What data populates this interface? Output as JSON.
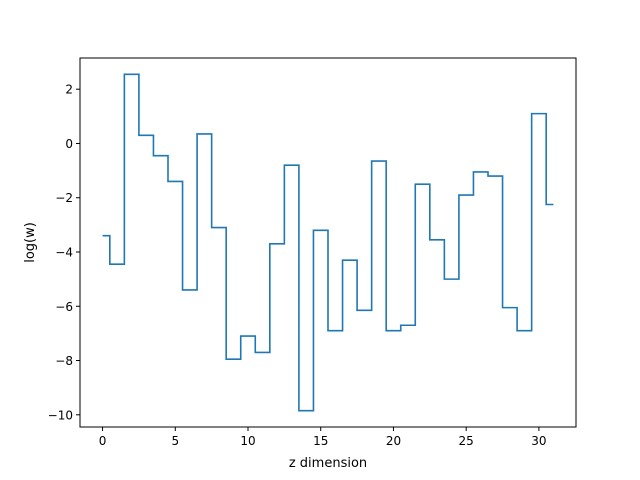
{
  "chart_data": {
    "type": "line",
    "drawstyle": "steps-mid",
    "title": "",
    "xlabel": "z dimension",
    "ylabel": "log(w)",
    "xlim": [
      -1.55,
      32.55
    ],
    "ylim": [
      -10.45,
      3.15
    ],
    "xticks": [
      0,
      5,
      10,
      15,
      20,
      25,
      30
    ],
    "yticks": [
      -10,
      -8,
      -6,
      -4,
      -2,
      0,
      2
    ],
    "xtick_labels": [
      "0",
      "5",
      "10",
      "15",
      "20",
      "25",
      "30"
    ],
    "ytick_labels": [
      "−10",
      "−8",
      "−6",
      "−4",
      "−2",
      "0",
      "2"
    ],
    "grid": false,
    "series": [
      {
        "color": "#1f77b4",
        "x": [
          0,
          1,
          2,
          3,
          4,
          5,
          6,
          7,
          8,
          9,
          10,
          11,
          12,
          13,
          14,
          15,
          16,
          17,
          18,
          19,
          20,
          21,
          22,
          23,
          24,
          25,
          26,
          27,
          28,
          29,
          30,
          31
        ],
        "y": [
          -3.4,
          -4.45,
          2.55,
          0.3,
          -0.45,
          -1.4,
          -5.4,
          0.35,
          -3.1,
          -7.95,
          -7.1,
          -7.7,
          -3.7,
          -0.8,
          -9.85,
          -3.2,
          -6.9,
          -4.3,
          -6.15,
          -0.65,
          -6.9,
          -6.7,
          -1.5,
          -3.55,
          -5.0,
          -1.9,
          -1.05,
          -1.2,
          -6.05,
          -6.9,
          1.1,
          -2.25
        ]
      }
    ]
  }
}
